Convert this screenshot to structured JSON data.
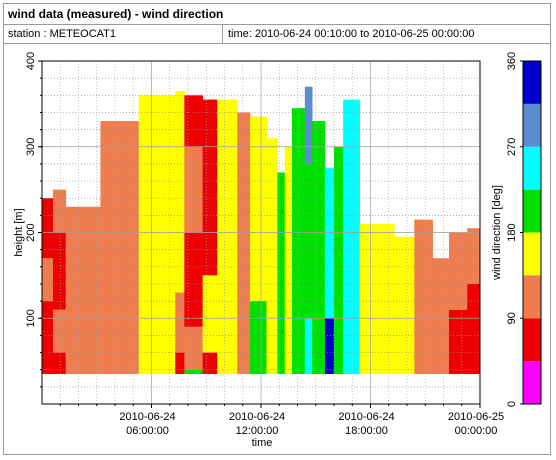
{
  "header": {
    "title": "wind data (measured) - wind direction",
    "station": "station : METEOCAT1",
    "time_range": "time: 2010-06-24 00:10:00 to 2010-06-25 00:00:00"
  },
  "colors": {
    "bins": [
      "#ff00ff",
      "#ee0000",
      "#ee7e50",
      "#ffff00",
      "#00e000",
      "#00ffff",
      "#5b8ccd",
      "#0000cd"
    ],
    "axis": "#000000",
    "grid": "#808080"
  },
  "chart_data": {
    "type": "heatmap",
    "xlabel": "time",
    "ylabel": "height [m]",
    "xlim_hours": [
      0,
      24
    ],
    "ylim": [
      0,
      400
    ],
    "x_ticks": [
      {
        "hours": 6,
        "line1": "2010-06-24",
        "line2": "06:00:00"
      },
      {
        "hours": 12,
        "line1": "2010-06-24",
        "line2": "12:00:00"
      },
      {
        "hours": 18,
        "line1": "2010-06-24",
        "line2": "18:00:00"
      },
      {
        "hours": 24,
        "line1": "2010-06-25",
        "line2": "00:00:00"
      }
    ],
    "y_ticks": [
      100,
      200,
      300,
      400
    ],
    "colorbar": {
      "label": "wind direction [deg]",
      "range": [
        0,
        360
      ],
      "ticks": [
        0,
        90,
        180,
        270,
        360
      ],
      "bin_edges_deg": [
        0,
        45,
        90,
        135,
        180,
        225,
        270,
        315,
        360
      ]
    },
    "height_min_m": 35,
    "segments": [
      {
        "start_h": 0.0,
        "end_h": 0.6,
        "top_m": 240,
        "profile": [
          [
            40,
            1
          ],
          [
            120,
            1
          ],
          [
            170,
            2
          ],
          [
            240,
            1
          ]
        ]
      },
      {
        "start_h": 0.6,
        "end_h": 1.3,
        "top_m": 250,
        "profile": [
          [
            60,
            1
          ],
          [
            110,
            2
          ],
          [
            200,
            1
          ],
          [
            250,
            2
          ]
        ]
      },
      {
        "start_h": 1.3,
        "end_h": 3.2,
        "top_m": 230,
        "profile": [
          [
            230,
            2
          ]
        ]
      },
      {
        "start_h": 3.2,
        "end_h": 5.3,
        "top_m": 330,
        "profile": [
          [
            330,
            2
          ]
        ]
      },
      {
        "start_h": 5.3,
        "end_h": 7.3,
        "top_m": 360,
        "profile": [
          [
            360,
            3
          ]
        ]
      },
      {
        "start_h": 7.3,
        "end_h": 7.8,
        "top_m": 365,
        "profile": [
          [
            60,
            1
          ],
          [
            130,
            2
          ],
          [
            365,
            3
          ]
        ]
      },
      {
        "start_h": 7.8,
        "end_h": 8.8,
        "top_m": 360,
        "profile": [
          [
            40,
            4
          ],
          [
            90,
            2
          ],
          [
            200,
            1
          ],
          [
            300,
            2
          ],
          [
            360,
            1
          ]
        ]
      },
      {
        "start_h": 8.8,
        "end_h": 9.6,
        "top_m": 355,
        "profile": [
          [
            60,
            1
          ],
          [
            150,
            3
          ],
          [
            355,
            1
          ]
        ]
      },
      {
        "start_h": 9.6,
        "end_h": 10.7,
        "top_m": 355,
        "profile": [
          [
            355,
            3
          ]
        ]
      },
      {
        "start_h": 10.7,
        "end_h": 11.4,
        "top_m": 340,
        "profile": [
          [
            340,
            2
          ]
        ]
      },
      {
        "start_h": 11.4,
        "end_h": 12.3,
        "top_m": 335,
        "profile": [
          [
            120,
            4
          ],
          [
            335,
            3
          ]
        ]
      },
      {
        "start_h": 12.3,
        "end_h": 12.9,
        "top_m": 310,
        "profile": [
          [
            310,
            3
          ]
        ]
      },
      {
        "start_h": 12.9,
        "end_h": 13.3,
        "top_m": 270,
        "profile": [
          [
            270,
            4
          ]
        ]
      },
      {
        "start_h": 13.3,
        "end_h": 13.7,
        "top_m": 300,
        "profile": [
          [
            300,
            3
          ]
        ]
      },
      {
        "start_h": 13.7,
        "end_h": 14.4,
        "top_m": 345,
        "profile": [
          [
            345,
            4
          ]
        ]
      },
      {
        "start_h": 14.4,
        "end_h": 14.8,
        "top_m": 370,
        "profile": [
          [
            100,
            5
          ],
          [
            280,
            4
          ],
          [
            370,
            6
          ]
        ]
      },
      {
        "start_h": 14.8,
        "end_h": 15.5,
        "top_m": 330,
        "profile": [
          [
            330,
            4
          ]
        ]
      },
      {
        "start_h": 15.5,
        "end_h": 16.0,
        "top_m": 275,
        "profile": [
          [
            100,
            7
          ],
          [
            275,
            5
          ]
        ]
      },
      {
        "start_h": 16.0,
        "end_h": 16.5,
        "top_m": 300,
        "profile": [
          [
            300,
            4
          ]
        ]
      },
      {
        "start_h": 16.5,
        "end_h": 17.4,
        "top_m": 355,
        "profile": [
          [
            355,
            5
          ]
        ]
      },
      {
        "start_h": 17.4,
        "end_h": 19.3,
        "top_m": 210,
        "profile": [
          [
            210,
            3
          ]
        ]
      },
      {
        "start_h": 19.3,
        "end_h": 20.4,
        "top_m": 195,
        "profile": [
          [
            195,
            3
          ]
        ]
      },
      {
        "start_h": 20.4,
        "end_h": 21.4,
        "top_m": 215,
        "profile": [
          [
            215,
            2
          ]
        ]
      },
      {
        "start_h": 21.4,
        "end_h": 22.3,
        "top_m": 170,
        "profile": [
          [
            170,
            2
          ]
        ]
      },
      {
        "start_h": 22.3,
        "end_h": 23.3,
        "top_m": 200,
        "profile": [
          [
            110,
            1
          ],
          [
            200,
            2
          ]
        ]
      },
      {
        "start_h": 23.3,
        "end_h": 24.0,
        "top_m": 205,
        "profile": [
          [
            140,
            1
          ],
          [
            205,
            2
          ]
        ]
      }
    ]
  }
}
